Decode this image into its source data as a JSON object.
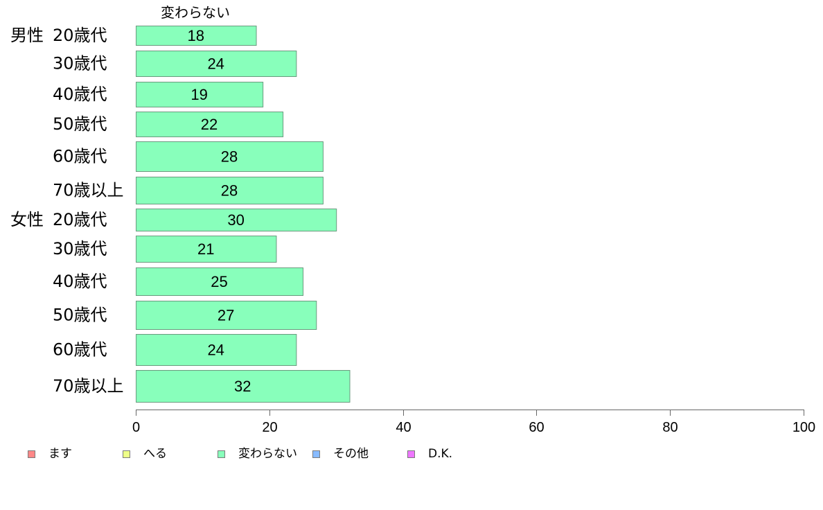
{
  "chart_data": {
    "type": "bar",
    "orientation": "horizontal",
    "series": [
      {
        "name": "変わらない",
        "color": "#88ffbb",
        "values": [
          18,
          24,
          19,
          22,
          28,
          28,
          30,
          21,
          25,
          27,
          24,
          32
        ]
      }
    ],
    "groups": [
      {
        "label": "男性",
        "categories": [
          "20歳代",
          "30歳代",
          "40歳代",
          "50歳代",
          "60歳代",
          "70歳以上"
        ]
      },
      {
        "label": "女性",
        "categories": [
          "20歳代",
          "30歳代",
          "40歳代",
          "50歳代",
          "60歳代",
          "70歳以上"
        ]
      }
    ],
    "xlim": [
      0,
      100
    ],
    "xticks": [
      0,
      20,
      40,
      60,
      80,
      100
    ],
    "grid": false,
    "legend": {
      "position": "bottom",
      "items": [
        {
          "label": "ます",
          "color": "#ff8888"
        },
        {
          "label": "へる",
          "color": "#eeff88"
        },
        {
          "label": "変わらない",
          "color": "#88ffbb"
        },
        {
          "label": "その他",
          "color": "#88bbff"
        },
        {
          "label": "D.K.",
          "color": "#ee77ff"
        }
      ]
    }
  }
}
